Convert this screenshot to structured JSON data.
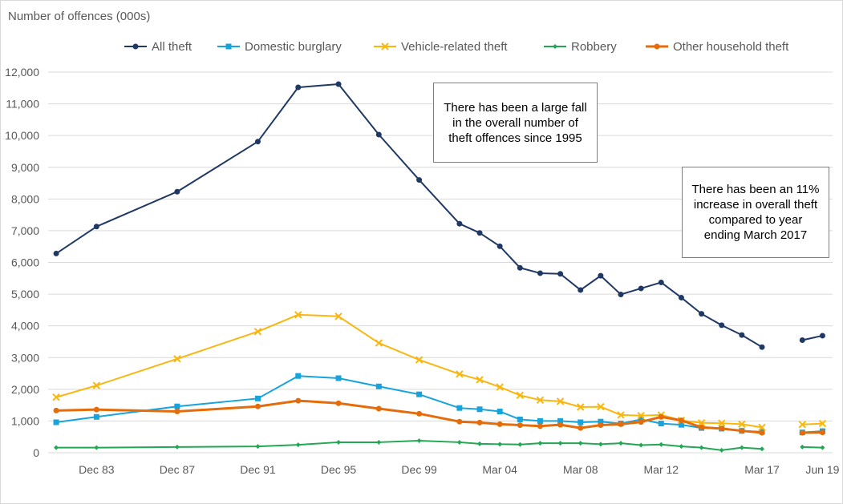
{
  "chart_data": {
    "type": "line",
    "ylabel": "Number of offences (000s)",
    "ylim": [
      0,
      12000
    ],
    "yticks": [
      0,
      1000,
      2000,
      3000,
      4000,
      5000,
      6000,
      7000,
      8000,
      9000,
      10000,
      11000,
      12000
    ],
    "ytick_labels": [
      "0",
      "1,000",
      "2,000",
      "3,000",
      "4,000",
      "5,000",
      "6,000",
      "7,000",
      "8,000",
      "9,000",
      "10,000",
      "11,000",
      "12,000"
    ],
    "xtick_labels": [
      "Dec 83",
      "Dec 87",
      "Dec 91",
      "Dec 95",
      "Dec 99",
      "Mar 04",
      "Mar 08",
      "Mar 12",
      "Mar 17",
      "Jun 19"
    ],
    "xtick_positions": [
      2,
      6,
      10,
      14,
      18,
      22,
      26,
      30,
      35,
      38
    ],
    "x": [
      0,
      2,
      6,
      10,
      12,
      14,
      16,
      18,
      20,
      21,
      22,
      23,
      24,
      25,
      26,
      27,
      28,
      29,
      30,
      31,
      32,
      33,
      34,
      35,
      37,
      38
    ],
    "series": [
      {
        "name": "All theft",
        "color": "#1f3864",
        "marker": "circle",
        "values": [
          6280,
          7130,
          8230,
          9810,
          11520,
          11620,
          10030,
          8600,
          7220,
          6930,
          6510,
          5830,
          5660,
          5640,
          5130,
          5580,
          4990,
          5180,
          5370,
          4890,
          4380,
          4020,
          3710,
          3330,
          3550,
          3690
        ]
      },
      {
        "name": "Domestic burglary",
        "color": "#17a3dc",
        "marker": "square",
        "values": [
          960,
          1130,
          1460,
          1710,
          2420,
          2350,
          2090,
          1840,
          1410,
          1370,
          1300,
          1050,
          1000,
          1000,
          960,
          980,
          920,
          1050,
          920,
          880,
          780,
          760,
          690,
          660,
          640,
          680
        ]
      },
      {
        "name": "Vehicle-related theft",
        "color": "#f9b60f",
        "marker": "x",
        "values": [
          1750,
          2120,
          2960,
          3820,
          4350,
          4300,
          3460,
          2930,
          2480,
          2300,
          2070,
          1810,
          1660,
          1620,
          1440,
          1450,
          1190,
          1170,
          1190,
          1020,
          940,
          930,
          900,
          800,
          890,
          920
        ]
      },
      {
        "name": "Robbery",
        "color": "#22a753",
        "marker": "diamond",
        "values": [
          160,
          160,
          180,
          200,
          250,
          330,
          330,
          380,
          330,
          280,
          270,
          260,
          300,
          300,
          300,
          270,
          300,
          240,
          260,
          200,
          160,
          80,
          160,
          120,
          180,
          160
        ]
      },
      {
        "name": "Other household theft",
        "color": "#e46c0a",
        "marker": "circle-thick",
        "values": [
          1330,
          1360,
          1300,
          1460,
          1640,
          1560,
          1390,
          1230,
          980,
          950,
          900,
          870,
          840,
          880,
          780,
          870,
          900,
          970,
          1130,
          1020,
          800,
          760,
          690,
          630,
          630,
          640
        ]
      }
    ],
    "annotations": [
      {
        "text": "There has been a large fall in the overall number of theft offences since 1995"
      },
      {
        "text": "There has been an 11% increase in overall theft compared to year ending March 2017"
      }
    ]
  }
}
